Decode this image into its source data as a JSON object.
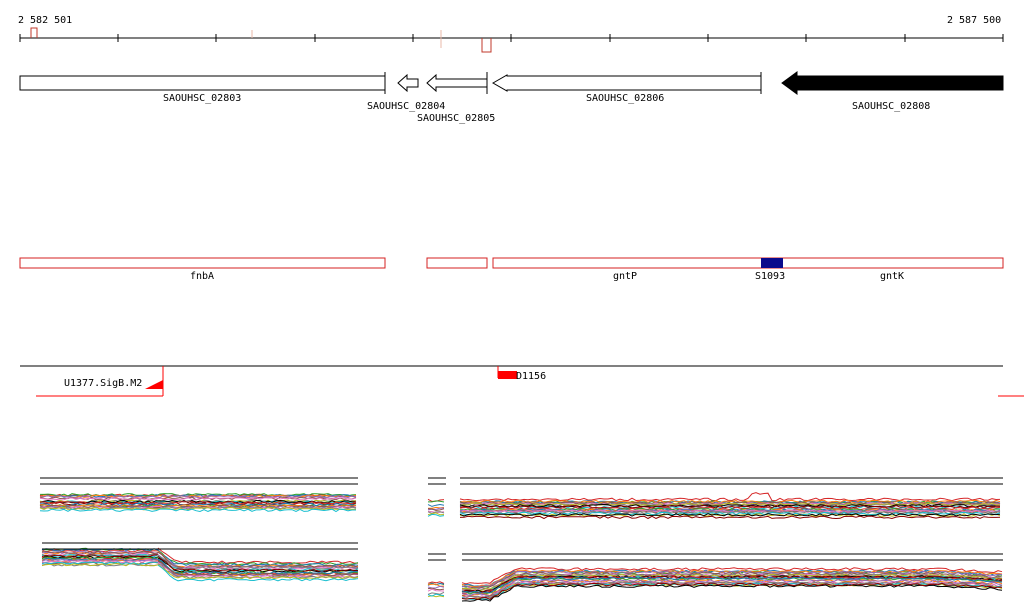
{
  "ruler": {
    "start_label": "2 582 501",
    "end_label": "2 587 500",
    "start": 2582501,
    "end": 2587500
  },
  "genes": [
    {
      "id": "SAOUHSC_02803",
      "strand": "+",
      "filled": false
    },
    {
      "id": "SAOUHSC_02804",
      "strand": "-",
      "filled": false
    },
    {
      "id": "SAOUHSC_02805",
      "strand": "-",
      "filled": false
    },
    {
      "id": "SAOUHSC_02806",
      "strand": "-",
      "filled": false
    },
    {
      "id": "SAOUHSC_02808",
      "strand": "-",
      "filled": true
    }
  ],
  "transcripts": {
    "labels": [
      "fnbA",
      "gntP",
      "S1093",
      "gntK"
    ],
    "feature_colors": {
      "outline": "#d42020",
      "small_rna": "#0a0a8c"
    }
  },
  "regulatory": {
    "features": [
      {
        "label": "U1377.SigB.M2",
        "color": "#ff0000"
      },
      {
        "label": "D1156",
        "color": "#ff0000"
      }
    ]
  },
  "colors": {
    "gene_fill": "#000000",
    "gene_outline": "#000000",
    "marker": "#c0392b",
    "track_palette": [
      "#d62728",
      "#2ca02c",
      "#1f77b4",
      "#ff7f0e",
      "#9467bd",
      "#8c564b",
      "#e377c2",
      "#7f7f7f",
      "#bcbd22",
      "#17becf",
      "#000000",
      "#8b0000"
    ]
  }
}
